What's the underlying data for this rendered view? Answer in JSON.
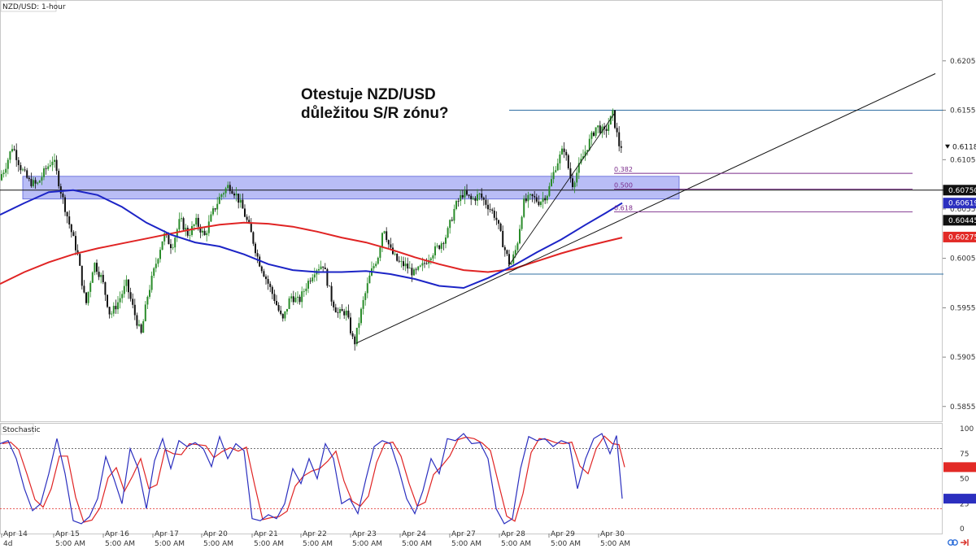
{
  "chart_data": {
    "type": "candlestick",
    "symbol_label": "NZD/USD: 1-hour",
    "headline": [
      "Otestuje NZD/USD",
      "důležitou S/R zónu?"
    ],
    "price_axis": {
      "ticks": [
        "0.62059",
        "0.61559",
        "0.61059",
        "0.60559",
        "0.60059",
        "0.59559",
        "0.59059",
        "0.58559"
      ],
      "range": [
        0.58409,
        0.62659
      ]
    },
    "time_axis": {
      "labels": [
        "Apr 14",
        "Apr 15",
        "Apr 16",
        "Apr 17",
        "Apr 20",
        "Apr 21",
        "Apr 22",
        "Apr 23",
        "Apr 24",
        "Apr 27",
        "Apr 28",
        "Apr 29",
        "Apr 30"
      ],
      "sub_labels": [
        "4d",
        "5:00 AM",
        "5:00 AM",
        "5:00 AM",
        "5:00 AM",
        "5:00 AM",
        "5:00 AM",
        "5:00 AM",
        "5:00 AM",
        "5:00 AM",
        "5:00 AM",
        "5:00 AM",
        "5:00 AM"
      ]
    },
    "price_path": [
      [
        0,
        0.6085
      ],
      [
        8,
        0.6096
      ],
      [
        18,
        0.612
      ],
      [
        28,
        0.6098
      ],
      [
        38,
        0.6084
      ],
      [
        48,
        0.608
      ],
      [
        58,
        0.6095
      ],
      [
        68,
        0.6107
      ],
      [
        78,
        0.6072
      ],
      [
        88,
        0.604
      ],
      [
        98,
        0.601
      ],
      [
        108,
        0.5958
      ],
      [
        118,
        0.6002
      ],
      [
        128,
        0.5985
      ],
      [
        138,
        0.5948
      ],
      [
        148,
        0.5962
      ],
      [
        158,
        0.598
      ],
      [
        168,
        0.595
      ],
      [
        176,
        0.5928
      ],
      [
        184,
        0.5968
      ],
      [
        194,
        0.6
      ],
      [
        204,
        0.603
      ],
      [
        214,
        0.6018
      ],
      [
        224,
        0.6045
      ],
      [
        234,
        0.603
      ],
      [
        244,
        0.6043
      ],
      [
        254,
        0.6028
      ],
      [
        264,
        0.6052
      ],
      [
        274,
        0.607
      ],
      [
        284,
        0.608
      ],
      [
        292,
        0.6072
      ],
      [
        300,
        0.6058
      ],
      [
        310,
        0.6035
      ],
      [
        320,
        0.6005
      ],
      [
        330,
        0.5985
      ],
      [
        340,
        0.5965
      ],
      [
        350,
        0.5942
      ],
      [
        360,
        0.5968
      ],
      [
        370,
        0.5962
      ],
      [
        380,
        0.598
      ],
      [
        390,
        0.5995
      ],
      [
        400,
        0.6
      ],
      [
        410,
        0.5965
      ],
      [
        418,
        0.595
      ],
      [
        428,
        0.5952
      ],
      [
        438,
        0.5918
      ],
      [
        448,
        0.5958
      ],
      [
        458,
        0.599
      ],
      [
        468,
        0.601
      ],
      [
        474,
        0.604
      ],
      [
        482,
        0.6015
      ],
      [
        492,
        0.6002
      ],
      [
        502,
        0.5998
      ],
      [
        512,
        0.599
      ],
      [
        522,
        0.5998
      ],
      [
        532,
        0.601
      ],
      [
        542,
        0.6018
      ],
      [
        552,
        0.603
      ],
      [
        562,
        0.6058
      ],
      [
        572,
        0.6072
      ],
      [
        582,
        0.6065
      ],
      [
        592,
        0.607
      ],
      [
        602,
        0.606
      ],
      [
        612,
        0.6048
      ],
      [
        622,
        0.6018
      ],
      [
        630,
        0.5998
      ],
      [
        638,
        0.6018
      ],
      [
        646,
        0.6062
      ],
      [
        656,
        0.6068
      ],
      [
        666,
        0.6063
      ],
      [
        676,
        0.6072
      ],
      [
        686,
        0.61
      ],
      [
        696,
        0.6118
      ],
      [
        706,
        0.608
      ],
      [
        716,
        0.6102
      ],
      [
        726,
        0.6122
      ],
      [
        736,
        0.614
      ],
      [
        746,
        0.6133
      ],
      [
        756,
        0.6152
      ],
      [
        764,
        0.612
      ]
    ],
    "ma_blue": [
      [
        0,
        0.605
      ],
      [
        30,
        0.6062
      ],
      [
        60,
        0.6073
      ],
      [
        90,
        0.6075
      ],
      [
        120,
        0.607
      ],
      [
        150,
        0.6058
      ],
      [
        180,
        0.6042
      ],
      [
        210,
        0.603
      ],
      [
        240,
        0.6022
      ],
      [
        270,
        0.6018
      ],
      [
        300,
        0.601
      ],
      [
        330,
        0.6
      ],
      [
        360,
        0.5994
      ],
      [
        390,
        0.5992
      ],
      [
        420,
        0.5992
      ],
      [
        450,
        0.5993
      ],
      [
        480,
        0.599
      ],
      [
        510,
        0.5985
      ],
      [
        540,
        0.5978
      ],
      [
        570,
        0.5976
      ],
      [
        600,
        0.5986
      ],
      [
        630,
        0.5998
      ],
      [
        660,
        0.6012
      ],
      [
        690,
        0.6025
      ],
      [
        720,
        0.604
      ],
      [
        745,
        0.6052
      ],
      [
        765,
        0.6062
      ]
    ],
    "ma_red": [
      [
        0,
        0.598
      ],
      [
        30,
        0.5992
      ],
      [
        60,
        0.6002
      ],
      [
        90,
        0.601
      ],
      [
        120,
        0.6016
      ],
      [
        150,
        0.6021
      ],
      [
        180,
        0.6026
      ],
      [
        210,
        0.6031
      ],
      [
        240,
        0.6036
      ],
      [
        270,
        0.604
      ],
      [
        300,
        0.6042
      ],
      [
        330,
        0.6041
      ],
      [
        360,
        0.6038
      ],
      [
        390,
        0.6033
      ],
      [
        420,
        0.6027
      ],
      [
        450,
        0.6022
      ],
      [
        480,
        0.6015
      ],
      [
        510,
        0.6007
      ],
      [
        540,
        0.6
      ],
      [
        570,
        0.5994
      ],
      [
        600,
        0.5992
      ],
      [
        630,
        0.5995
      ],
      [
        660,
        0.6003
      ],
      [
        690,
        0.6011
      ],
      [
        720,
        0.6018
      ],
      [
        745,
        0.6023
      ],
      [
        765,
        0.6027
      ]
    ],
    "sr_zone": {
      "from": 0.6066,
      "to": 0.6089,
      "line": 0.6075
    },
    "resistance_line": 0.61559,
    "support_line": 0.599,
    "trendline_main": {
      "start": [
        438,
        0.592
      ],
      "end": [
        1150,
        0.6193
      ]
    },
    "trendline_inner": {
      "start": [
        625,
        0.5998
      ],
      "end": [
        755,
        0.6152
      ]
    },
    "fibonacci": [
      {
        "label": "0.382",
        "price": 0.6092
      },
      {
        "label": "0.500",
        "price": 0.6076
      },
      {
        "label": "0.618",
        "price": 0.6053
      }
    ],
    "price_badges": [
      {
        "label": "0.61187",
        "price": 0.61187,
        "bg": "#ffffff",
        "fg": "#111111",
        "arrow": true
      },
      {
        "label": "0.60750",
        "price": 0.6075,
        "bg": "#111111",
        "fg": "#ffffff"
      },
      {
        "label": "0.60619",
        "price": 0.60619,
        "bg": "#2b2fbf",
        "fg": "#ffffff"
      },
      {
        "label": "0.60445",
        "price": 0.60445,
        "bg": "#111111",
        "fg": "#ffffff"
      },
      {
        "label": "0.60275",
        "price": 0.60275,
        "bg": "#e22a26",
        "fg": "#ffffff"
      }
    ],
    "stochastic": {
      "label": "Stochastic",
      "ticks": [
        "100",
        "75",
        "50",
        "25",
        "0"
      ],
      "overbought": 80,
      "oversold": 20,
      "k": [
        [
          0,
          85
        ],
        [
          10,
          88
        ],
        [
          20,
          70
        ],
        [
          30,
          40
        ],
        [
          40,
          18
        ],
        [
          50,
          25
        ],
        [
          60,
          55
        ],
        [
          70,
          90
        ],
        [
          80,
          55
        ],
        [
          90,
          8
        ],
        [
          100,
          5
        ],
        [
          110,
          12
        ],
        [
          120,
          30
        ],
        [
          130,
          72
        ],
        [
          140,
          50
        ],
        [
          150,
          25
        ],
        [
          160,
          80
        ],
        [
          170,
          60
        ],
        [
          180,
          20
        ],
        [
          190,
          68
        ],
        [
          200,
          90
        ],
        [
          210,
          60
        ],
        [
          220,
          88
        ],
        [
          230,
          82
        ],
        [
          240,
          86
        ],
        [
          250,
          80
        ],
        [
          260,
          62
        ],
        [
          270,
          92
        ],
        [
          280,
          70
        ],
        [
          290,
          85
        ],
        [
          300,
          78
        ],
        [
          310,
          10
        ],
        [
          320,
          8
        ],
        [
          330,
          14
        ],
        [
          340,
          10
        ],
        [
          350,
          25
        ],
        [
          360,
          60
        ],
        [
          370,
          45
        ],
        [
          380,
          70
        ],
        [
          390,
          50
        ],
        [
          400,
          85
        ],
        [
          410,
          70
        ],
        [
          420,
          25
        ],
        [
          430,
          30
        ],
        [
          440,
          15
        ],
        [
          450,
          50
        ],
        [
          460,
          82
        ],
        [
          470,
          88
        ],
        [
          480,
          85
        ],
        [
          490,
          60
        ],
        [
          500,
          30
        ],
        [
          510,
          15
        ],
        [
          520,
          38
        ],
        [
          530,
          70
        ],
        [
          540,
          55
        ],
        [
          550,
          90
        ],
        [
          560,
          88
        ],
        [
          570,
          95
        ],
        [
          580,
          85
        ],
        [
          590,
          86
        ],
        [
          600,
          70
        ],
        [
          610,
          20
        ],
        [
          620,
          5
        ],
        [
          630,
          10
        ],
        [
          640,
          60
        ],
        [
          650,
          92
        ],
        [
          660,
          88
        ],
        [
          670,
          90
        ],
        [
          680,
          82
        ],
        [
          690,
          88
        ],
        [
          700,
          85
        ],
        [
          710,
          40
        ],
        [
          720,
          70
        ],
        [
          730,
          90
        ],
        [
          740,
          95
        ],
        [
          750,
          75
        ],
        [
          758,
          93
        ],
        [
          765,
          30
        ]
      ]
    }
  }
}
